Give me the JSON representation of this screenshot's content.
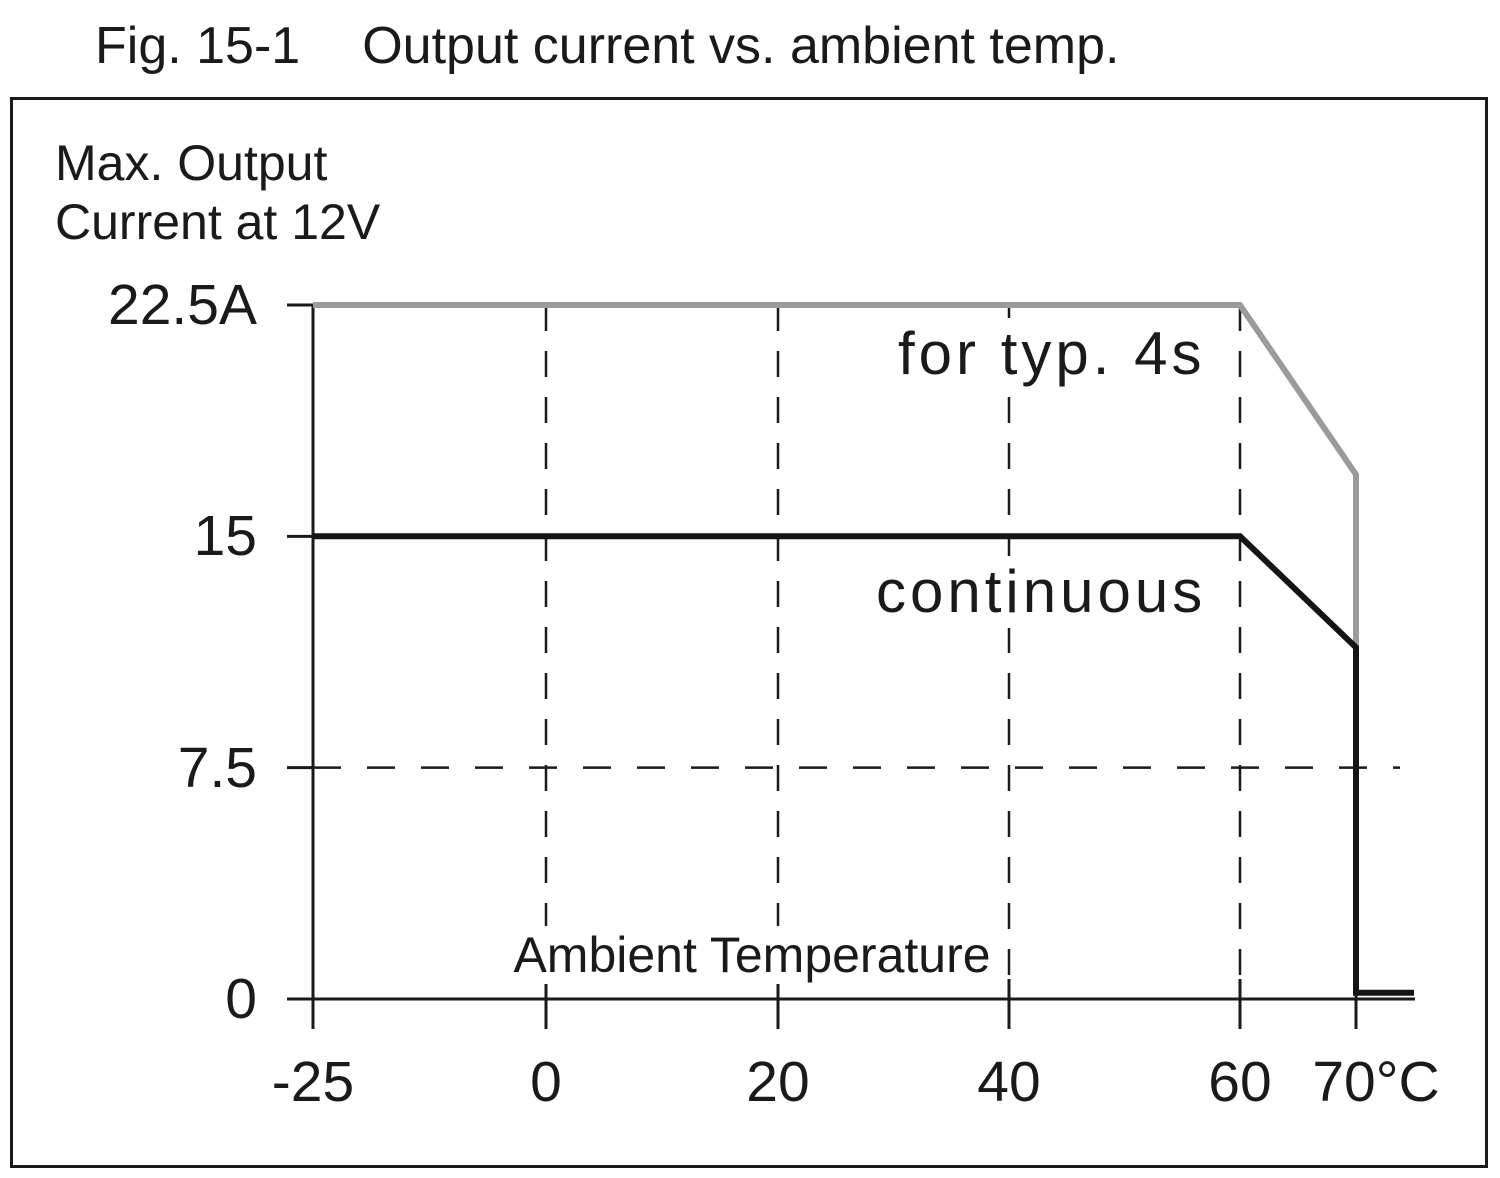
{
  "figure": {
    "label": "Fig. 15-1",
    "title": "Output current vs. ambient temp."
  },
  "chart_data": {
    "type": "line",
    "title": "Output current vs. ambient temp.",
    "figure_label": "Fig. 15-1",
    "ylabel": "Max. Output\nCurrent at 12V",
    "xlabel": "Ambient Temperature",
    "xlim": [
      -25,
      75
    ],
    "ylim": [
      0,
      22.5
    ],
    "grid": "dashed",
    "background_color": "#ffffff",
    "axis_color": "#1a1a1a",
    "x_ticks": [
      {
        "t": -25,
        "label": "-25"
      },
      {
        "t": 0,
        "label": "0"
      },
      {
        "t": 20,
        "label": "20"
      },
      {
        "t": 40,
        "label": "40"
      },
      {
        "t": 60,
        "label": "60"
      },
      {
        "t": 70,
        "label": "70°C"
      }
    ],
    "y_ticks": [
      {
        "v": 0,
        "label": "0"
      },
      {
        "v": 7.5,
        "label": "7.5"
      },
      {
        "v": 15,
        "label": "15"
      },
      {
        "v": 22.5,
        "label": "22.5A"
      }
    ],
    "gridlines": {
      "vertical_at": [
        0,
        20,
        40,
        60
      ],
      "horizontal_at": [
        7.5
      ]
    },
    "series": [
      {
        "name": "for typ. 4s",
        "color": "#9b9b9b",
        "points": [
          [
            -25,
            22.5
          ],
          [
            60,
            22.5
          ],
          [
            70,
            17
          ],
          [
            70,
            11.4
          ]
        ]
      },
      {
        "name": "continuous",
        "color": "#141414",
        "points": [
          [
            -25,
            15
          ],
          [
            60,
            15
          ],
          [
            70,
            11.4
          ],
          [
            70,
            0.2
          ],
          [
            75,
            0.2
          ]
        ]
      }
    ]
  }
}
